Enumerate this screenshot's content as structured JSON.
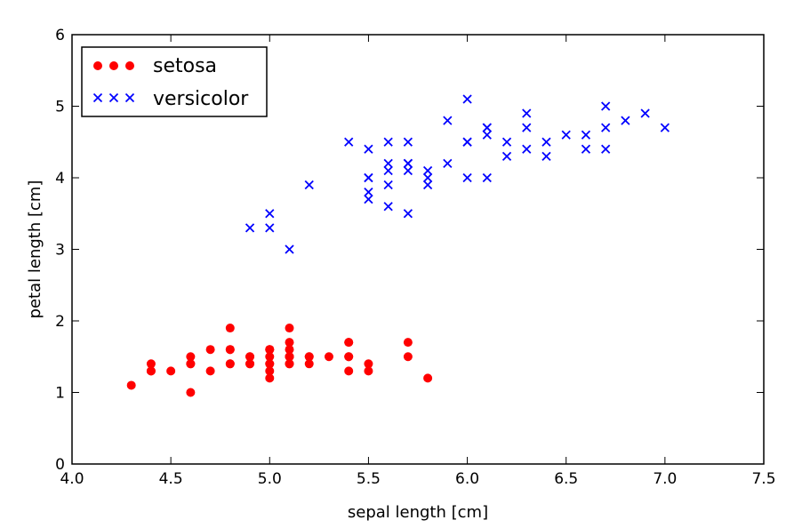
{
  "chart_data": {
    "type": "scatter",
    "xlabel": "sepal length [cm]",
    "ylabel": "petal length [cm]",
    "xlim": [
      4.0,
      7.5
    ],
    "ylim": [
      0,
      6
    ],
    "xticks": [
      "4.0",
      "4.5",
      "5.0",
      "5.5",
      "6.0",
      "6.5",
      "7.0",
      "7.5"
    ],
    "yticks": [
      "0",
      "1",
      "2",
      "3",
      "4",
      "5",
      "6"
    ],
    "grid": false,
    "legend_position": "top-left",
    "series": [
      {
        "name": "setosa",
        "marker": "circle",
        "color": "#ff0000",
        "x": [
          5.1,
          4.9,
          4.7,
          4.6,
          5.0,
          5.4,
          4.6,
          5.0,
          4.4,
          4.9,
          5.4,
          4.8,
          4.8,
          4.3,
          5.8,
          5.7,
          5.4,
          5.1,
          5.7,
          5.1,
          5.4,
          5.1,
          4.6,
          5.1,
          4.8,
          5.0,
          5.0,
          5.2,
          5.2,
          4.7,
          4.8,
          5.4,
          5.2,
          5.5,
          4.9,
          5.0,
          5.5,
          4.9,
          4.4,
          5.1,
          5.0,
          4.5,
          4.4,
          5.0,
          5.1,
          4.8,
          5.1,
          4.6,
          5.3,
          5.0
        ],
        "y": [
          1.4,
          1.4,
          1.3,
          1.5,
          1.4,
          1.7,
          1.4,
          1.5,
          1.4,
          1.5,
          1.5,
          1.6,
          1.4,
          1.1,
          1.2,
          1.5,
          1.3,
          1.4,
          1.7,
          1.5,
          1.7,
          1.5,
          1.0,
          1.7,
          1.9,
          1.6,
          1.6,
          1.5,
          1.4,
          1.6,
          1.6,
          1.5,
          1.5,
          1.4,
          1.5,
          1.2,
          1.3,
          1.4,
          1.3,
          1.5,
          1.3,
          1.3,
          1.3,
          1.6,
          1.9,
          1.4,
          1.6,
          1.4,
          1.5,
          1.4
        ]
      },
      {
        "name": "versicolor",
        "marker": "x",
        "color": "#0000ff",
        "x": [
          7.0,
          6.4,
          6.9,
          5.5,
          6.5,
          5.7,
          6.3,
          4.9,
          6.6,
          5.2,
          5.0,
          5.9,
          6.0,
          6.1,
          5.6,
          6.7,
          5.6,
          5.8,
          6.2,
          5.6,
          5.9,
          6.1,
          6.3,
          6.1,
          6.4,
          6.6,
          6.8,
          6.7,
          6.0,
          5.7,
          5.5,
          5.5,
          5.8,
          6.0,
          5.4,
          6.0,
          6.7,
          6.3,
          5.6,
          5.5,
          5.5,
          6.1,
          5.8,
          5.0,
          5.6,
          5.7,
          5.7,
          6.2,
          5.1,
          5.7
        ],
        "y": [
          4.7,
          4.5,
          4.9,
          4.0,
          4.6,
          4.5,
          4.7,
          3.3,
          4.6,
          3.9,
          3.5,
          4.2,
          4.0,
          4.7,
          3.6,
          4.4,
          4.5,
          4.1,
          4.5,
          3.9,
          4.8,
          4.0,
          4.9,
          4.7,
          4.3,
          4.4,
          4.8,
          5.0,
          4.5,
          3.5,
          3.8,
          3.7,
          3.9,
          5.1,
          4.5,
          4.5,
          4.7,
          4.4,
          4.1,
          4.0,
          4.4,
          4.6,
          4.0,
          3.3,
          4.2,
          4.2,
          4.2,
          4.3,
          3.0,
          4.1
        ]
      }
    ]
  }
}
